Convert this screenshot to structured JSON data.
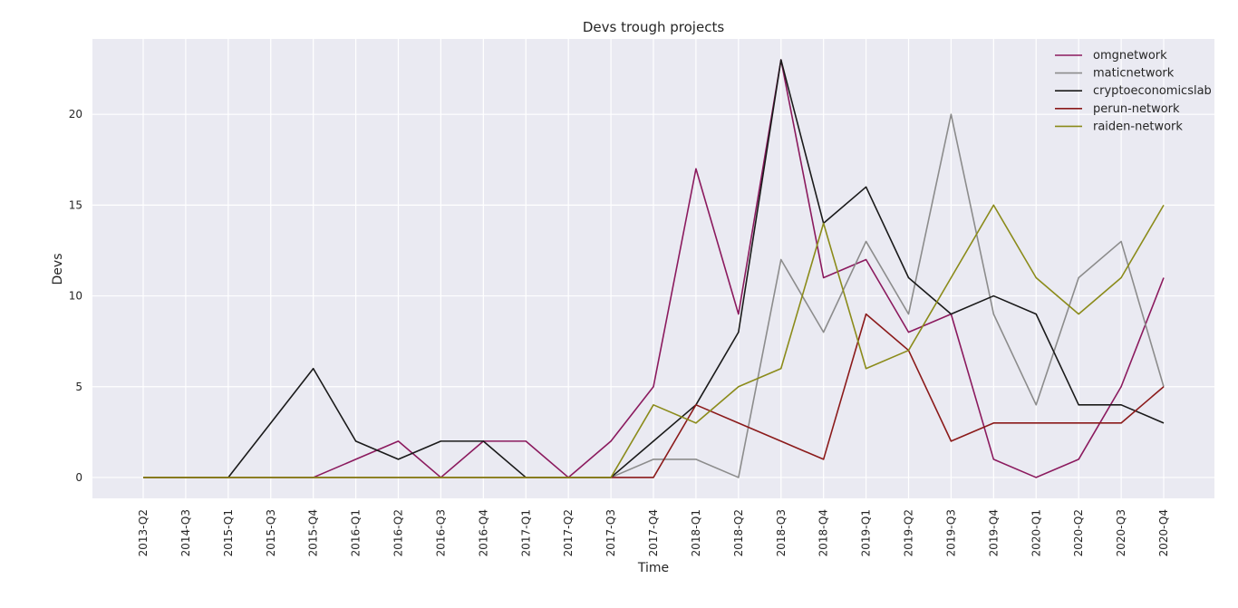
{
  "chart_data": {
    "type": "line",
    "title": "Devs trough projects",
    "xlabel": "Time",
    "ylabel": "Devs",
    "categories": [
      "2013-Q2",
      "2014-Q3",
      "2015-Q1",
      "2015-Q3",
      "2015-Q4",
      "2016-Q1",
      "2016-Q2",
      "2016-Q3",
      "2016-Q4",
      "2017-Q1",
      "2017-Q2",
      "2017-Q3",
      "2017-Q4",
      "2018-Q1",
      "2018-Q2",
      "2018-Q3",
      "2018-Q4",
      "2019-Q1",
      "2019-Q2",
      "2019-Q3",
      "2019-Q4",
      "2020-Q1",
      "2020-Q2",
      "2020-Q3",
      "2020-Q4"
    ],
    "yticks": [
      0,
      5,
      10,
      15,
      20
    ],
    "ylim": [
      -1.15,
      24.15
    ],
    "grid": true,
    "legend_position": "top-right",
    "background_color": "#eaeaf2",
    "series": [
      {
        "name": "omgnetwork",
        "color": "#8b1a5e",
        "values": [
          0,
          0,
          0,
          0,
          0,
          1,
          2,
          0,
          2,
          2,
          0,
          2,
          5,
          17,
          9,
          23,
          11,
          12,
          8,
          9,
          1,
          0,
          1,
          5,
          11
        ]
      },
      {
        "name": "maticnetwork",
        "color": "#8c8c8c",
        "values": [
          0,
          0,
          0,
          0,
          0,
          0,
          0,
          0,
          0,
          0,
          0,
          0,
          1,
          1,
          0,
          12,
          8,
          13,
          9,
          20,
          9,
          4,
          11,
          13,
          5
        ]
      },
      {
        "name": "cryptoeconomicslab",
        "color": "#1a1a1a",
        "values": [
          0,
          0,
          0,
          3,
          6,
          2,
          1,
          2,
          2,
          0,
          0,
          0,
          2,
          4,
          8,
          23,
          14,
          16,
          11,
          9,
          10,
          9,
          4,
          4,
          3
        ]
      },
      {
        "name": "perun-network",
        "color": "#8b1a1a",
        "values": [
          0,
          0,
          0,
          0,
          0,
          0,
          0,
          0,
          0,
          0,
          0,
          0,
          0,
          4,
          3,
          2,
          1,
          9,
          7,
          2,
          3,
          3,
          3,
          3,
          5
        ]
      },
      {
        "name": "raiden-network",
        "color": "#8b8b1a",
        "values": [
          0,
          0,
          0,
          0,
          0,
          0,
          0,
          0,
          0,
          0,
          0,
          0,
          4,
          3,
          5,
          6,
          14,
          6,
          7,
          11,
          15,
          11,
          9,
          11,
          15
        ]
      }
    ]
  }
}
